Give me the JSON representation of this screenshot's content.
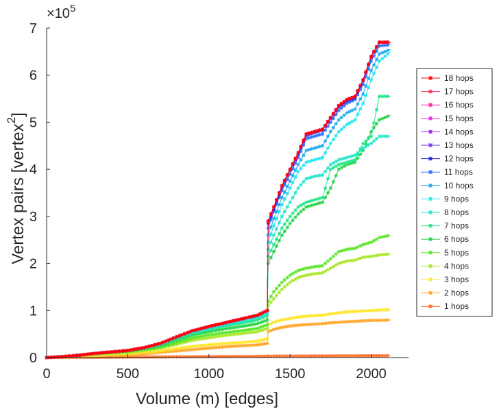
{
  "chart_data": {
    "type": "line",
    "title": "",
    "xlabel": "Volume (m) [edges]",
    "ylabel": "Vertex pairs [vertex",
    "ylabel_superscript": "2",
    "ylabel_suffix": "]",
    "y_exponent_label": "×10",
    "y_exponent_power": "5",
    "xlim": [
      0,
      2230
    ],
    "ylim": [
      0,
      700000
    ],
    "y_scale": 100000,
    "x_ticks": [
      0,
      500,
      1000,
      1500,
      2000
    ],
    "x_tick_labels": [
      "0",
      "500",
      "1000",
      "1500",
      "2000"
    ],
    "y_ticks": [
      0,
      100000,
      200000,
      300000,
      400000,
      500000,
      600000,
      700000
    ],
    "y_tick_labels": [
      "0",
      "1",
      "2",
      "3",
      "4",
      "5",
      "6",
      "7"
    ],
    "legend_position": "right",
    "x": [
      0,
      100,
      200,
      300,
      400,
      500,
      600,
      700,
      800,
      900,
      1000,
      1100,
      1200,
      1300,
      1360,
      1365,
      1400,
      1450,
      1500,
      1550,
      1600,
      1650,
      1700,
      1750,
      1800,
      1850,
      1900,
      1950,
      2000,
      2050,
      2120
    ],
    "series": [
      {
        "name": "18 hops",
        "color": "#ff0000",
        "values": [
          0,
          2000,
          5000,
          9000,
          12000,
          15000,
          21000,
          30000,
          44000,
          57000,
          66000,
          74000,
          82000,
          90000,
          100000,
          290000,
          320000,
          365000,
          400000,
          435000,
          475000,
          480000,
          485000,
          510000,
          535000,
          548000,
          555000,
          590000,
          640000,
          670000,
          670000
        ]
      },
      {
        "name": "17 hops",
        "color": "#ff2d5a",
        "values": [
          0,
          2000,
          5000,
          9000,
          12000,
          15000,
          21000,
          30000,
          44000,
          57000,
          66000,
          74000,
          82000,
          90000,
          100000,
          290000,
          320000,
          365000,
          400000,
          435000,
          475000,
          480000,
          485000,
          510000,
          535000,
          548000,
          555000,
          590000,
          640000,
          670000,
          670000
        ]
      },
      {
        "name": "16 hops",
        "color": "#ff19a8",
        "values": [
          0,
          2000,
          5000,
          9000,
          12000,
          15000,
          21000,
          30000,
          44000,
          57000,
          66000,
          74000,
          82000,
          90000,
          100000,
          290000,
          320000,
          365000,
          400000,
          435000,
          475000,
          480000,
          485000,
          510000,
          535000,
          548000,
          555000,
          590000,
          640000,
          670000,
          670000
        ]
      },
      {
        "name": "15 hops",
        "color": "#f023f0",
        "values": [
          0,
          2000,
          5000,
          9000,
          12000,
          15000,
          21000,
          30000,
          44000,
          57000,
          66000,
          74000,
          82000,
          90000,
          100000,
          290000,
          320000,
          365000,
          400000,
          435000,
          475000,
          480000,
          485000,
          510000,
          535000,
          548000,
          555000,
          590000,
          640000,
          670000,
          670000
        ]
      },
      {
        "name": "14 hops",
        "color": "#a020f0",
        "values": [
          0,
          2000,
          5000,
          9000,
          12000,
          15000,
          21000,
          30000,
          44000,
          57000,
          66000,
          74000,
          82000,
          90000,
          100000,
          290000,
          320000,
          365000,
          400000,
          435000,
          475000,
          480000,
          485000,
          510000,
          535000,
          548000,
          555000,
          590000,
          640000,
          670000,
          670000
        ]
      },
      {
        "name": "13 hops",
        "color": "#6a2ff0",
        "values": [
          0,
          2000,
          5000,
          9000,
          12000,
          15000,
          21000,
          30000,
          44000,
          57000,
          66000,
          74000,
          82000,
          90000,
          100000,
          290000,
          320000,
          365000,
          400000,
          435000,
          475000,
          480000,
          485000,
          510000,
          535000,
          548000,
          555000,
          590000,
          640000,
          670000,
          670000
        ]
      },
      {
        "name": "12 hops",
        "color": "#2323e6",
        "values": [
          0,
          2000,
          5000,
          9000,
          12000,
          15000,
          21000,
          30000,
          44000,
          57000,
          66000,
          74000,
          82000,
          90000,
          100000,
          285000,
          315000,
          362000,
          398000,
          432000,
          472000,
          478000,
          483000,
          508000,
          532000,
          545000,
          552000,
          588000,
          638000,
          670000,
          670000
        ]
      },
      {
        "name": "11 hops",
        "color": "#2d6eff",
        "values": [
          0,
          2000,
          5000,
          9000,
          12000,
          15000,
          21000,
          30000,
          44000,
          57000,
          66000,
          74000,
          82000,
          90000,
          100000,
          275000,
          310000,
          355000,
          390000,
          425000,
          465000,
          470000,
          475000,
          500000,
          525000,
          540000,
          548000,
          580000,
          630000,
          662000,
          665000
        ]
      },
      {
        "name": "10 hops",
        "color": "#1eaaf0",
        "values": [
          0,
          2000,
          5000,
          9000,
          12000,
          15000,
          21000,
          30000,
          44000,
          57000,
          66000,
          74000,
          82000,
          90000,
          100000,
          260000,
          295000,
          340000,
          375000,
          410000,
          440000,
          445000,
          450000,
          480000,
          505000,
          520000,
          528000,
          560000,
          610000,
          645000,
          655000
        ]
      },
      {
        "name": "9 hops",
        "color": "#22e6f0",
        "values": [
          0,
          2000,
          5000,
          9000,
          12000,
          15000,
          21000,
          30000,
          44000,
          56000,
          65000,
          73000,
          80000,
          88000,
          98000,
          245000,
          280000,
          325000,
          360000,
          395000,
          415000,
          420000,
          425000,
          455000,
          480000,
          495000,
          505000,
          540000,
          590000,
          630000,
          650000
        ]
      },
      {
        "name": "8 hops",
        "color": "#22e6c8",
        "values": [
          0,
          2000,
          5000,
          9000,
          12000,
          15000,
          20000,
          28000,
          42000,
          54000,
          62000,
          70000,
          77000,
          85000,
          95000,
          230000,
          260000,
          300000,
          330000,
          360000,
          380000,
          385000,
          388000,
          410000,
          420000,
          425000,
          430000,
          445000,
          455000,
          470000,
          470000
        ]
      },
      {
        "name": "7 hops",
        "color": "#22e68c",
        "values": [
          0,
          2000,
          5000,
          9000,
          12000,
          15000,
          20000,
          27000,
          40000,
          52000,
          60000,
          67000,
          73000,
          80000,
          90000,
          215000,
          240000,
          275000,
          300000,
          320000,
          330000,
          335000,
          340000,
          400000,
          410000,
          415000,
          420000,
          455000,
          470000,
          555000,
          555000
        ]
      },
      {
        "name": "6 hops",
        "color": "#2ad44a",
        "values": [
          0,
          2000,
          5000,
          9000,
          12000,
          14000,
          19000,
          25000,
          37000,
          48000,
          55000,
          61000,
          66000,
          72000,
          80000,
          200000,
          225000,
          260000,
          285000,
          305000,
          320000,
          325000,
          330000,
          360000,
          400000,
          410000,
          415000,
          440000,
          480000,
          505000,
          515000
        ]
      },
      {
        "name": "5 hops",
        "color": "#5ae628",
        "values": [
          0,
          2000,
          5000,
          8000,
          11000,
          13000,
          17000,
          22000,
          32000,
          42000,
          48000,
          53000,
          57000,
          62000,
          70000,
          120000,
          140000,
          160000,
          175000,
          185000,
          190000,
          193000,
          195000,
          210000,
          225000,
          230000,
          232000,
          240000,
          245000,
          255000,
          260000
        ]
      },
      {
        "name": "4 hops",
        "color": "#aae628",
        "values": [
          0,
          2000,
          4000,
          7000,
          9000,
          11000,
          15000,
          20000,
          28000,
          37000,
          42000,
          47000,
          51000,
          55000,
          62000,
          110000,
          125000,
          145000,
          160000,
          170000,
          175000,
          178000,
          180000,
          190000,
          200000,
          205000,
          207000,
          213000,
          215000,
          218000,
          220000
        ]
      },
      {
        "name": "3 hops",
        "color": "#ffe628",
        "values": [
          0,
          1000,
          3000,
          5000,
          7000,
          8000,
          11000,
          14000,
          19000,
          24000,
          27000,
          30000,
          32000,
          35000,
          40000,
          70000,
          75000,
          80000,
          83000,
          86000,
          88000,
          89000,
          90000,
          93000,
          95000,
          97000,
          98000,
          99000,
          100000,
          101000,
          102000
        ]
      },
      {
        "name": "2 hops",
        "color": "#ffa528",
        "values": [
          0,
          1000,
          2000,
          3000,
          4000,
          5000,
          8000,
          11000,
          14000,
          17000,
          20000,
          23000,
          25000,
          27000,
          30000,
          55000,
          60000,
          64000,
          67000,
          69000,
          70000,
          71000,
          72000,
          74000,
          75000,
          76000,
          77000,
          78000,
          79000,
          79000,
          80000
        ]
      },
      {
        "name": "1 hops",
        "color": "#ff6e28",
        "values": [
          0,
          200,
          400,
          600,
          800,
          1000,
          1200,
          1400,
          1600,
          1800,
          2000,
          2200,
          2400,
          2600,
          2800,
          2900,
          3000,
          3100,
          3200,
          3300,
          3400,
          3450,
          3500,
          3550,
          3600,
          3650,
          3700,
          3750,
          3800,
          3850,
          3900
        ]
      }
    ]
  }
}
